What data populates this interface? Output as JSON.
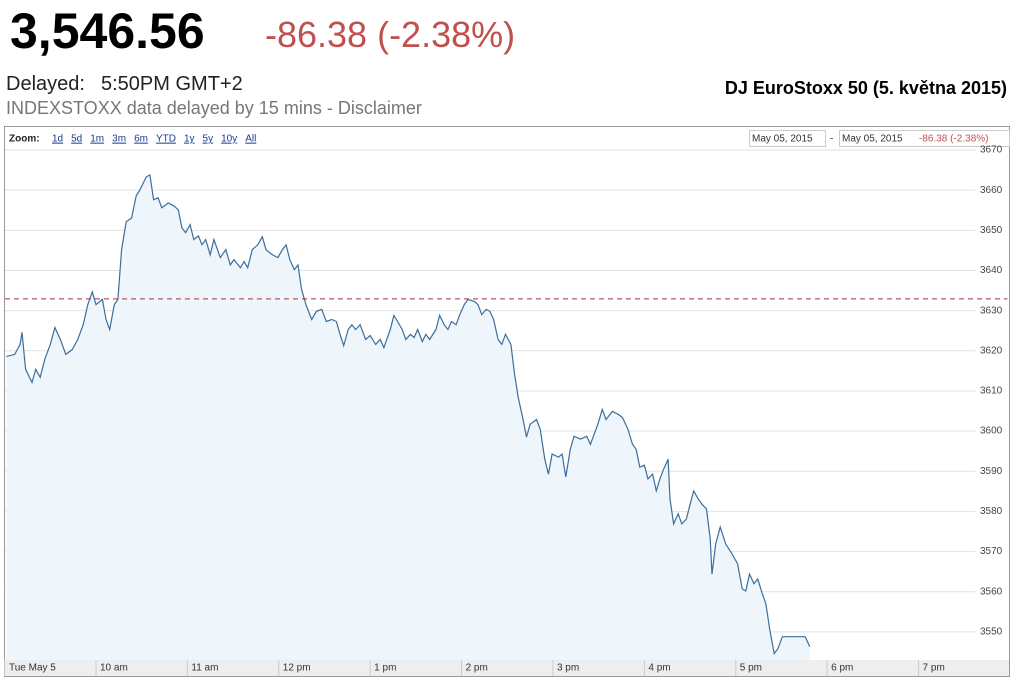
{
  "header": {
    "price": "3,546.56",
    "change": "-86.38 (-2.38%)",
    "delayed_label": "Delayed:",
    "delayed_time": "5:50PM GMT+2",
    "notice": "INDEXSTOXX data delayed by 15 mins - Disclaimer",
    "chart_label": "DJ EuroStoxx 50 (5. května 2015)"
  },
  "zoom_bar": {
    "label": "Zoom:",
    "options": [
      "1d",
      "5d",
      "1m",
      "3m",
      "6m",
      "YTD",
      "1y",
      "5y",
      "10y",
      "All"
    ],
    "from": "May 05, 2015",
    "separator": "-",
    "to": "May 05, 2015"
  },
  "chart_data": {
    "type": "line",
    "x": [
      9.02,
      9.11,
      9.17,
      9.19,
      9.23,
      9.3,
      9.34,
      9.39,
      9.44,
      9.5,
      9.55,
      9.61,
      9.67,
      9.74,
      9.8,
      9.86,
      9.91,
      9.96,
      10.0,
      10.07,
      10.11,
      10.15,
      10.2,
      10.24,
      10.28,
      10.33,
      10.39,
      10.44,
      10.48,
      10.55,
      10.59,
      10.63,
      10.68,
      10.72,
      10.79,
      10.85,
      10.9,
      10.94,
      10.98,
      11.03,
      11.07,
      11.12,
      11.16,
      11.2,
      11.25,
      11.29,
      11.36,
      11.42,
      11.47,
      11.51,
      11.58,
      11.62,
      11.66,
      11.71,
      11.77,
      11.82,
      11.86,
      11.93,
      11.99,
      12.04,
      12.08,
      12.12,
      12.17,
      12.21,
      12.25,
      12.3,
      12.36,
      12.41,
      12.47,
      12.52,
      12.58,
      12.63,
      12.67,
      12.71,
      12.76,
      12.8,
      12.84,
      12.89,
      12.95,
      13.0,
      13.06,
      13.11,
      13.15,
      13.22,
      13.26,
      13.3,
      13.35,
      13.39,
      13.44,
      13.48,
      13.52,
      13.57,
      13.61,
      13.65,
      13.72,
      13.76,
      13.81,
      13.85,
      13.89,
      13.94,
      13.98,
      14.03,
      14.07,
      14.14,
      14.18,
      14.22,
      14.27,
      14.31,
      14.35,
      14.4,
      14.44,
      14.48,
      14.54,
      14.58,
      14.62,
      14.67,
      14.71,
      14.75,
      14.82,
      14.86,
      14.91,
      14.95,
      14.99,
      15.06,
      15.1,
      15.14,
      15.19,
      15.23,
      15.3,
      15.37,
      15.41,
      15.45,
      15.49,
      15.54,
      15.58,
      15.65,
      15.71,
      15.76,
      15.82,
      15.87,
      15.91,
      15.95,
      16.0,
      16.04,
      16.09,
      16.13,
      16.17,
      16.21,
      16.26,
      16.28,
      16.32,
      16.37,
      16.41,
      16.46,
      16.5,
      16.54,
      16.59,
      16.63,
      16.68,
      16.72,
      16.74,
      16.78,
      16.83,
      16.89,
      16.96,
      17.02,
      17.07,
      17.11,
      17.15,
      17.2,
      17.24,
      17.29,
      17.33,
      17.37,
      17.42,
      17.46,
      17.51,
      17.59,
      17.7,
      17.76,
      17.81
    ],
    "series": [
      {
        "color": "#3d6e9a",
        "values": [
          3618.6,
          3619.1,
          3621.6,
          3624.6,
          3615.4,
          3612.1,
          3615.4,
          3613.4,
          3617.9,
          3621.6,
          3625.8,
          3622.8,
          3619.1,
          3620.3,
          3622.8,
          3626.5,
          3631.5,
          3634.7,
          3631.5,
          3632.8,
          3627.8,
          3625.3,
          3631.5,
          3632.8,
          3645.2,
          3652.1,
          3653.1,
          3658.6,
          3660.1,
          3663.3,
          3663.8,
          3657.6,
          3658.1,
          3655.6,
          3656.8,
          3656.1,
          3655.1,
          3650.6,
          3649.4,
          3651.4,
          3647.7,
          3648.6,
          3646.4,
          3647.7,
          3643.9,
          3647.7,
          3643.2,
          3645.2,
          3641.4,
          3642.7,
          3640.7,
          3642.2,
          3640.7,
          3645.2,
          3646.4,
          3648.4,
          3645.2,
          3643.9,
          3643.2,
          3645.2,
          3646.4,
          3642.7,
          3640.2,
          3641.4,
          3635.2,
          3631.3,
          3627.8,
          3629.8,
          3630.3,
          3627.3,
          3627.8,
          3627.3,
          3624.1,
          3621.3,
          3625.3,
          3626.5,
          3625.3,
          3626.5,
          3622.8,
          3623.8,
          3621.6,
          3622.8,
          3620.8,
          3625.3,
          3628.8,
          3627.3,
          3625.3,
          3622.8,
          3624.1,
          3623.3,
          3625.3,
          3622.3,
          3624.1,
          3622.8,
          3625.3,
          3628.8,
          3626.5,
          3625.3,
          3627.3,
          3626.5,
          3629.0,
          3631.5,
          3632.8,
          3632.3,
          3631.5,
          3629.0,
          3630.3,
          3629.8,
          3627.8,
          3622.8,
          3621.6,
          3624.1,
          3621.6,
          3614.1,
          3608.4,
          3603.2,
          3598.5,
          3601.7,
          3602.9,
          3600.5,
          3593.0,
          3589.3,
          3594.3,
          3593.5,
          3594.3,
          3588.6,
          3595.5,
          3598.7,
          3598.0,
          3598.7,
          3596.7,
          3599.2,
          3601.7,
          3605.4,
          3602.9,
          3604.9,
          3604.2,
          3603.4,
          3600.5,
          3596.7,
          3595.5,
          3591.0,
          3591.5,
          3588.1,
          3589.3,
          3585.1,
          3588.1,
          3590.5,
          3593.0,
          3583.1,
          3576.9,
          3579.4,
          3576.9,
          3578.1,
          3581.8,
          3585.1,
          3583.1,
          3581.8,
          3580.6,
          3573.2,
          3564.4,
          3571.9,
          3576.1,
          3571.9,
          3569.4,
          3566.9,
          3560.7,
          3560.2,
          3564.4,
          3562.0,
          3563.2,
          3559.5,
          3557.0,
          3550.8,
          3544.6,
          3545.8,
          3548.8,
          3548.8,
          3548.8,
          3548.8,
          3546.3
        ]
      }
    ],
    "area_color": "#eef6fc",
    "reference_line": 3632.94,
    "reference_color": "#a33333",
    "xlim": [
      9,
      19.6
    ],
    "xticks": [
      {
        "value": 9,
        "label": "Tue May 5"
      },
      {
        "value": 10,
        "label": "10 am"
      },
      {
        "value": 11,
        "label": "11 am"
      },
      {
        "value": 12,
        "label": "12 pm"
      },
      {
        "value": 13,
        "label": "1 pm"
      },
      {
        "value": 14,
        "label": "2 pm"
      },
      {
        "value": 15,
        "label": "3 pm"
      },
      {
        "value": 16,
        "label": "4 pm"
      },
      {
        "value": 17,
        "label": "5 pm"
      },
      {
        "value": 18,
        "label": "6 pm"
      },
      {
        "value": 19,
        "label": "7 pm"
      }
    ],
    "ylim": [
      3543,
      3670
    ],
    "yticks": [
      3550,
      3560,
      3570,
      3580,
      3590,
      3600,
      3610,
      3620,
      3630,
      3640,
      3650,
      3660,
      3670
    ],
    "grid": true
  }
}
